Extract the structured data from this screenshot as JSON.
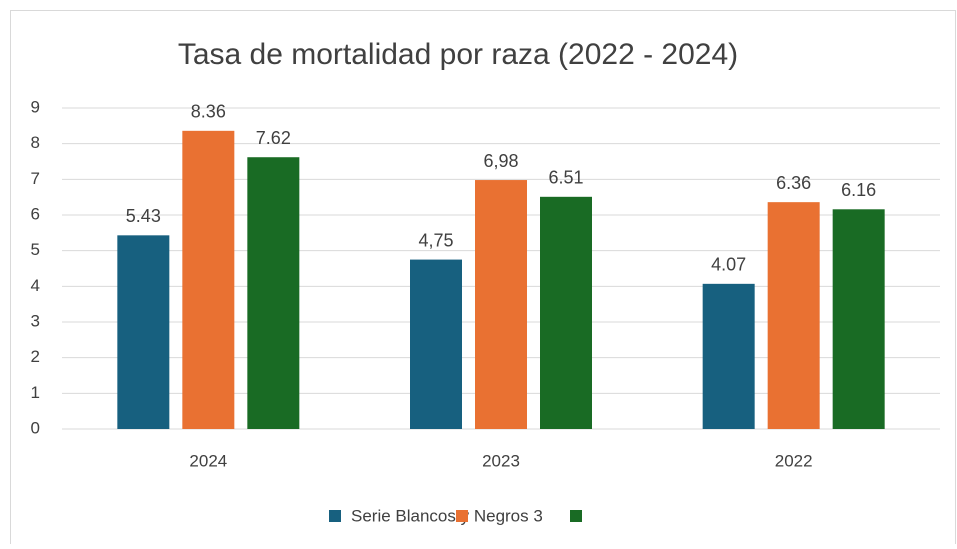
{
  "chart_data": {
    "type": "bar",
    "title": "Tasa de mortalidad por raza (2022 - 2024)",
    "categories": [
      "2024",
      "2023",
      "2022"
    ],
    "series": [
      {
        "color": "#17607f",
        "values": [
          5.43,
          4.75,
          4.07
        ],
        "value_labels": [
          "5.43",
          "4,75",
          "4.07"
        ]
      },
      {
        "color": "#e97132",
        "values": [
          8.36,
          6.98,
          6.36
        ],
        "value_labels": [
          "8.36",
          "6,98",
          "6.36"
        ]
      },
      {
        "color": "#196b24",
        "values": [
          7.62,
          6.51,
          6.16
        ]
      }
    ],
    "legend_text": "Serie Blancos y Negros 3",
    "ylim": [
      0,
      9
    ],
    "yticks": [
      0,
      1,
      2,
      3,
      4,
      5,
      6,
      7,
      8,
      9
    ],
    "grid": true
  }
}
